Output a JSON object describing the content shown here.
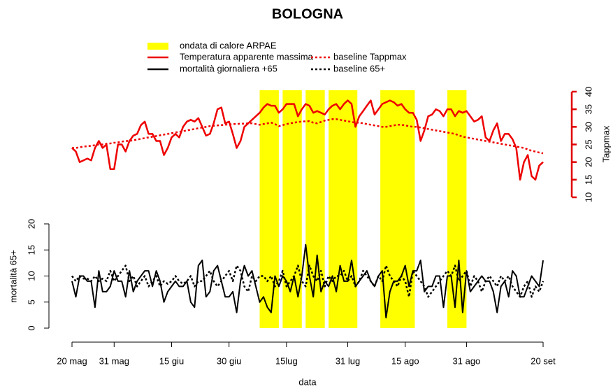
{
  "chart_data": {
    "type": "line",
    "title": "BOLOGNA",
    "x_label": "data",
    "y_label": "mortalità 65+",
    "y2_label": "Tappmax",
    "x": [
      0,
      1,
      2,
      3,
      4,
      5,
      6,
      7,
      8,
      9,
      10,
      11,
      12,
      13,
      14,
      15,
      16,
      17,
      18,
      19,
      20,
      21,
      22,
      23,
      24,
      25,
      26,
      27,
      28,
      29,
      30,
      31,
      32,
      33,
      34,
      35,
      36,
      37,
      38,
      39,
      40,
      41,
      42,
      43,
      44,
      45,
      46,
      47,
      48,
      49,
      50,
      51,
      52,
      53,
      54,
      55,
      56,
      57,
      58,
      59,
      60,
      61,
      62,
      63,
      64,
      65,
      66,
      67,
      68,
      69,
      70,
      71,
      72,
      73,
      74,
      75,
      76,
      77,
      78,
      79,
      80,
      81,
      82,
      83,
      84,
      85,
      86,
      87,
      88,
      89,
      90,
      91,
      92,
      93,
      94,
      95,
      96,
      97,
      98,
      99,
      100,
      101,
      102,
      103,
      104,
      105,
      106,
      107,
      108,
      109,
      110,
      111,
      112,
      113,
      114,
      115,
      116,
      117,
      118,
      119,
      120,
      121,
      122,
      123
    ],
    "xlim": [
      0,
      123
    ],
    "xticks": [
      {
        "value": 0,
        "label": "20 mag"
      },
      {
        "value": 11,
        "label": "31 mag"
      },
      {
        "value": 26,
        "label": "15 giu"
      },
      {
        "value": 41,
        "label": "30 giu"
      },
      {
        "value": 56,
        "label": "15lug"
      },
      {
        "value": 72,
        "label": "31 lug"
      },
      {
        "value": 87,
        "label": "15 ago"
      },
      {
        "value": 103,
        "label": "31 ago"
      },
      {
        "value": 123,
        "label": "20 set"
      }
    ],
    "ylim": [
      0,
      20
    ],
    "yticks": [
      0,
      5,
      10,
      15,
      20
    ],
    "y2lim": [
      10,
      40
    ],
    "y2ticks": [
      10,
      15,
      20,
      25,
      30,
      35,
      40
    ],
    "y2_color": "#e00000",
    "shaded_periods": {
      "name": "ondata di calore ARPAE",
      "color": "#ffff00",
      "ranges": [
        [
          49,
          54
        ],
        [
          55,
          60
        ],
        [
          61,
          66
        ],
        [
          67,
          74.5
        ],
        [
          80.5,
          89.5
        ],
        [
          98,
          103
        ]
      ]
    },
    "series": [
      {
        "name": "Temperatura apparente massima",
        "color": "#ee0000",
        "axis": "y2",
        "dash": false,
        "values": [
          24,
          23,
          20,
          20.5,
          21,
          20.5,
          24,
          26,
          24,
          25,
          18,
          18,
          25,
          25,
          23,
          26,
          27.5,
          28,
          30.5,
          31.5,
          28,
          28,
          26,
          26,
          22,
          24,
          27,
          28,
          27,
          30,
          31.5,
          32,
          31.5,
          32.5,
          30,
          27.5,
          28,
          31,
          35,
          35.5,
          31,
          31.5,
          28,
          24,
          26,
          30,
          31,
          32,
          33,
          34,
          35.5,
          36.5,
          36,
          36,
          34,
          35,
          36.5,
          36.5,
          36.5,
          33,
          35,
          36.5,
          36,
          34,
          34.5,
          34,
          33.5,
          35,
          36,
          36.5,
          35,
          36.5,
          37.5,
          36.5,
          30,
          33,
          34.5,
          36,
          37.5,
          33.5,
          35,
          36.5,
          37,
          37.5,
          37,
          36,
          36.5,
          35,
          34,
          34,
          32,
          26,
          29,
          33,
          33.5,
          35,
          34.5,
          33,
          35,
          35,
          33,
          34.5,
          34,
          34.5,
          33,
          31.5,
          32,
          33,
          27,
          26,
          29,
          31,
          26,
          28,
          28,
          26.5,
          24,
          15,
          20,
          22,
          16,
          15,
          19,
          20
        ]
      },
      {
        "name": "baseline Tappmax",
        "color": "#ee0000",
        "axis": "y2",
        "dash": true,
        "values": [
          24,
          24,
          24.2,
          24.4,
          24.5,
          24.6,
          24.8,
          25,
          25,
          25.2,
          25.3,
          25.5,
          25.6,
          25.8,
          26,
          26,
          26.2,
          26.4,
          26.6,
          26.8,
          27,
          27.2,
          27.4,
          27.6,
          27.8,
          28,
          28.2,
          28.4,
          28.6,
          28.8,
          29,
          29.2,
          29.4,
          29.6,
          29.8,
          30,
          30.2,
          30.3,
          30.4,
          30.5,
          30.6,
          30.7,
          30.8,
          30.8,
          30.9,
          30.9,
          31,
          31,
          30.8,
          30.6,
          30.8,
          31,
          31.2,
          30.8,
          30.2,
          30.5,
          30.8,
          31,
          31.2,
          31.4,
          31.5,
          31.6,
          31.6,
          31.2,
          31,
          31.4,
          31.8,
          32,
          32.2,
          32.2,
          32,
          31.8,
          31.6,
          31.4,
          31.2,
          31.2,
          31,
          30.8,
          30.6,
          30.4,
          30.2,
          30,
          30,
          30.2,
          30.4,
          30.6,
          30.6,
          30.4,
          30.2,
          30,
          30,
          29.8,
          29.6,
          29.4,
          29.2,
          29,
          28.8,
          28.6,
          28.4,
          28.2,
          28,
          27.6,
          27.2,
          27,
          26.8,
          26.6,
          26.4,
          26.2,
          26,
          25.8,
          25.6,
          25.4,
          25.2,
          25,
          24.8,
          24.6,
          24.4,
          24.2,
          24,
          23.6,
          23.2,
          23,
          22.7,
          22.5
        ]
      },
      {
        "name": "mortalità giornaliera +65",
        "color": "#000000",
        "axis": "y",
        "dash": false,
        "values": [
          9,
          6,
          10,
          10,
          9,
          9,
          4,
          11,
          7,
          7,
          8,
          11,
          9,
          9,
          6,
          11,
          7,
          9,
          10,
          11,
          11,
          8,
          11,
          9,
          5,
          7,
          8,
          9,
          8,
          8,
          9,
          5,
          4,
          12,
          13,
          6,
          7,
          11,
          12,
          9,
          6,
          6,
          7,
          3,
          9,
          12,
          10,
          11,
          8,
          5,
          6,
          4,
          3,
          10,
          8,
          10,
          9,
          7,
          10,
          6,
          10,
          16,
          10,
          6,
          14,
          7,
          9,
          8,
          10,
          7,
          12,
          9,
          9,
          13,
          8,
          9,
          10,
          11,
          9,
          8,
          10,
          11,
          2,
          7,
          9,
          9,
          10,
          12,
          8,
          11,
          11,
          13,
          7,
          8,
          8,
          10,
          10,
          4,
          10,
          10,
          4,
          13,
          3,
          11,
          7,
          8,
          9,
          10,
          9,
          9,
          7,
          3,
          8,
          9,
          6,
          11,
          10,
          6,
          6,
          8,
          10,
          9,
          8,
          13
        ]
      },
      {
        "name": "baseline 65+",
        "color": "#000000",
        "axis": "y",
        "dash": true,
        "values": [
          10,
          9,
          10,
          9.5,
          9.5,
          9,
          10,
          9,
          9.5,
          9,
          11,
          9,
          10,
          11,
          12,
          9,
          10,
          8,
          9,
          10,
          8,
          9,
          10,
          8,
          9,
          8.5,
          9,
          10,
          9,
          8.5,
          9,
          10,
          8,
          9,
          9,
          10,
          11,
          9,
          8,
          9,
          10,
          11,
          9,
          12,
          11,
          8,
          7,
          10,
          9,
          10,
          10,
          9,
          10,
          8,
          9,
          11,
          8,
          9,
          10,
          12,
          9,
          8,
          12,
          10,
          9,
          11,
          8,
          10,
          9,
          10,
          10,
          11,
          9,
          10,
          8,
          9,
          11,
          10,
          9,
          8,
          10,
          9,
          12,
          10,
          9,
          8,
          10,
          9,
          6,
          11,
          10,
          9,
          8,
          6,
          7,
          8,
          9,
          10,
          11,
          10,
          12,
          9,
          10,
          11,
          8,
          10,
          9,
          7,
          9,
          10,
          9,
          8,
          10,
          9,
          10,
          8,
          7,
          6,
          8,
          9,
          6,
          8,
          7,
          9
        ]
      }
    ]
  }
}
